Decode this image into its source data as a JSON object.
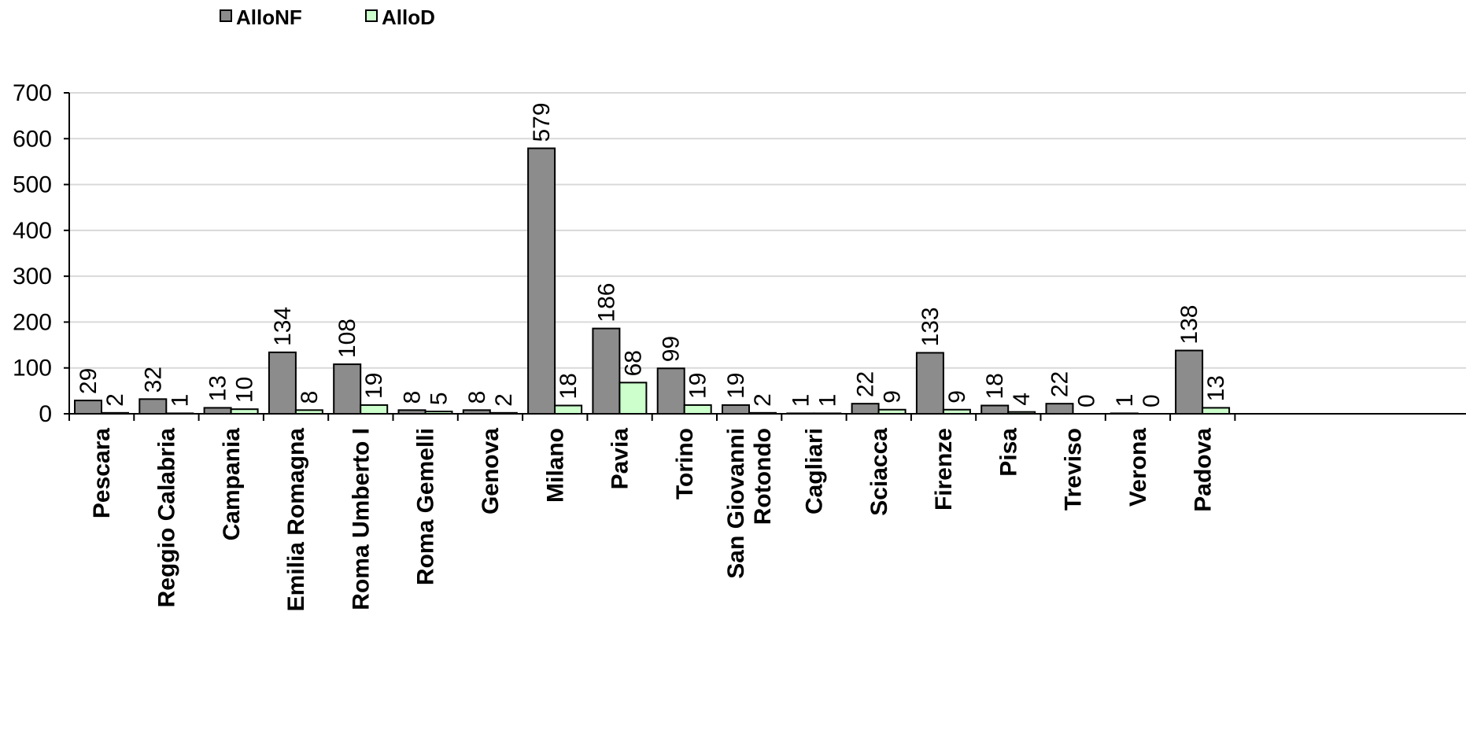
{
  "chart_data": {
    "type": "bar",
    "categories": [
      [
        "Pescara"
      ],
      [
        "Reggio Calabria"
      ],
      [
        "Campania"
      ],
      [
        "Emilia Romagna"
      ],
      [
        "Roma Umberto I"
      ],
      [
        "Roma Gemelli"
      ],
      [
        "Genova"
      ],
      [
        "Milano"
      ],
      [
        "Pavia"
      ],
      [
        "Torino"
      ],
      [
        "San Giovanni",
        "Rotondo"
      ],
      [
        "Cagliari"
      ],
      [
        "Sciacca"
      ],
      [
        "Firenze"
      ],
      [
        "Pisa"
      ],
      [
        "Treviso"
      ],
      [
        "Verona"
      ],
      [
        "Padova"
      ]
    ],
    "series": [
      {
        "name": "AlloNF",
        "color": "#8c8c8c",
        "values": [
          29,
          32,
          13,
          134,
          108,
          8,
          8,
          579,
          186,
          99,
          19,
          1,
          22,
          133,
          18,
          22,
          1,
          138
        ]
      },
      {
        "name": "AlloD",
        "color": "#ccffcc",
        "values": [
          2,
          1,
          10,
          8,
          19,
          5,
          2,
          18,
          68,
          19,
          2,
          1,
          9,
          9,
          4,
          0,
          0,
          13
        ]
      }
    ],
    "ylim": [
      0,
      700
    ],
    "yticks": [
      0,
      100,
      200,
      300,
      400,
      500,
      600,
      700
    ],
    "grid": true,
    "legend_position": "top-left",
    "data_labels": true
  }
}
